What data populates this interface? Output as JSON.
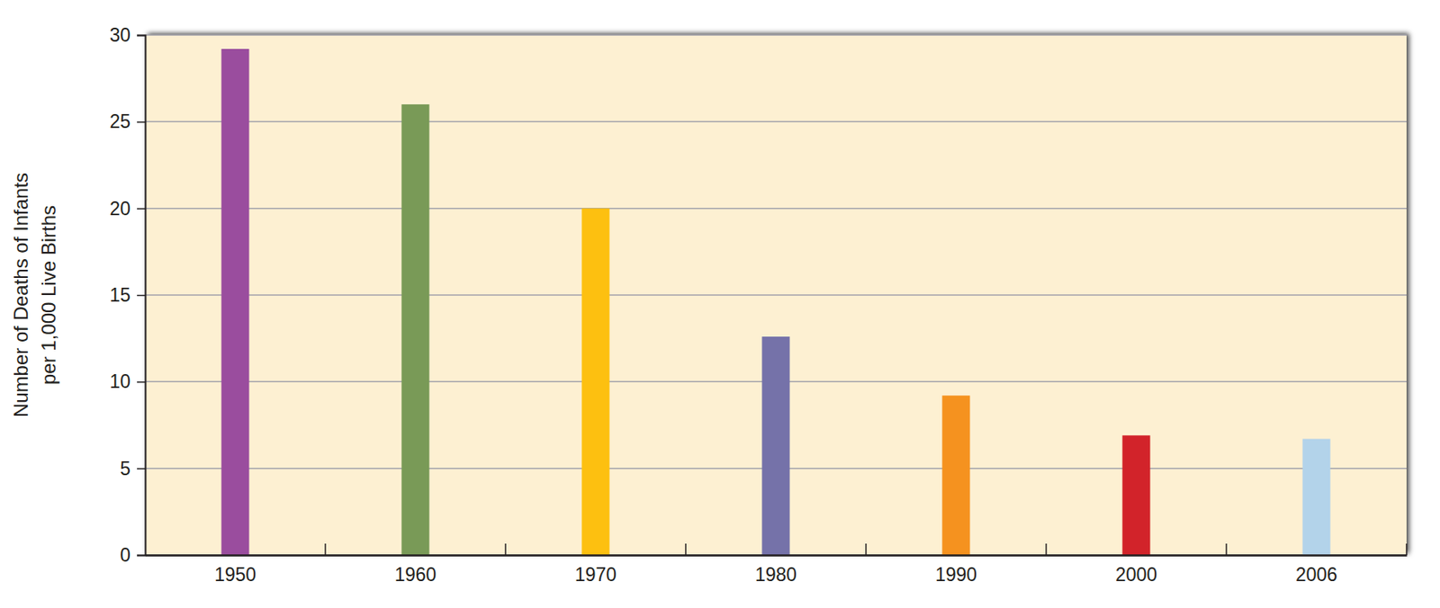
{
  "chart_data": {
    "type": "bar",
    "y_label": [
      "Number of Deaths of Infants",
      "per 1,000 Live Births"
    ],
    "categories": [
      "1950",
      "1960",
      "1970",
      "1980",
      "1990",
      "2000",
      "2006"
    ],
    "values": [
      29.2,
      26,
      20,
      12.6,
      9.2,
      6.9,
      6.7
    ],
    "colors": [
      "#9a4d9e",
      "#799a57",
      "#fdc010",
      "#7572a9",
      "#f5921f",
      "#d2232a",
      "#b3d3ea"
    ],
    "ylim": [
      0,
      30
    ],
    "yticks": [
      0,
      5,
      10,
      15,
      20,
      25,
      30
    ],
    "grid": true
  }
}
